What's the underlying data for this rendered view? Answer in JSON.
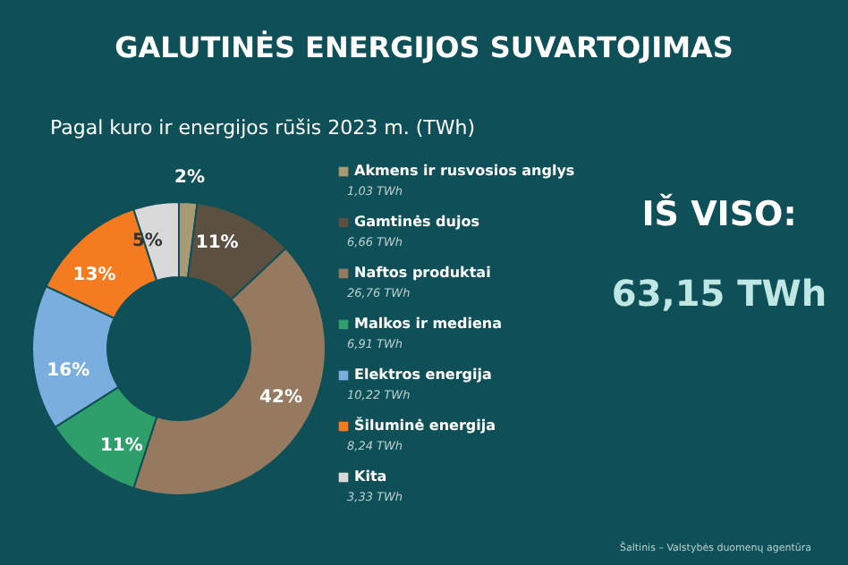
{
  "chart_data": {
    "type": "donut",
    "title": "GALUTINĖS ENERGIJOS SUVARTOJIMAS",
    "subtitle": "Pagal kuro ir energijos rūšis 2023 m. (TWh)",
    "categories": [
      "Akmens ir rusvosios anglys",
      "Gamtinės dujos",
      "Naftos produktai",
      "Malkos ir mediena",
      "Elektros energija",
      "Šiluminė energija",
      "Kita"
    ],
    "values": [
      2,
      11,
      42,
      11,
      16,
      13,
      5
    ],
    "colors": [
      "#a89a72",
      "#5c5040",
      "#957a5f",
      "#2e9e6a",
      "#7aaedf",
      "#f47b20",
      "#d9d9d9"
    ],
    "value_labels": [
      "2%",
      "11%",
      "42%",
      "11%",
      "16%",
      "13%",
      "5%"
    ],
    "legend": "right",
    "annotations": [
      "1,03 TWh",
      "6,66 TWh",
      "26,76 TWh",
      "6,91 TWh",
      "10,22 TWh",
      "8,24 TWh",
      "3,33 TWh",
      "IŠ VISO:",
      "63,15 TWh",
      "Šaltinis – Valstybės duomenų agentūra"
    ]
  }
}
